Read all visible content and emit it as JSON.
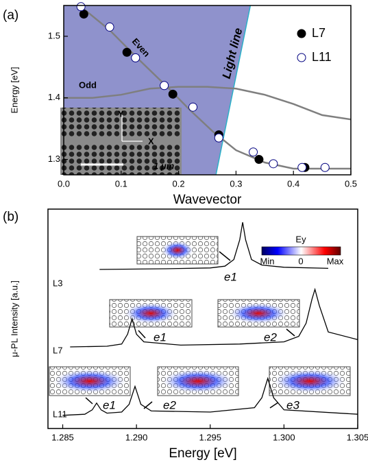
{
  "chart_data": [
    {
      "type": "scatter",
      "panel_label": "(a)",
      "x_label": "Wavevector",
      "y_label": "Energy [eV]",
      "xlim": [
        0,
        0.5
      ],
      "ylim": [
        1.275,
        1.55
      ],
      "xticks": [
        {
          "value": 0,
          "label": "0.0"
        },
        0.1,
        0.2,
        0.3,
        0.4,
        0.5
      ],
      "yticks": [
        1.3,
        1.4,
        1.5
      ],
      "shade_color": "#8f92cc",
      "series": [
        {
          "name": "Even",
          "style": "line",
          "color": "#7f7f7f",
          "x": [
            0.03,
            0.08,
            0.13,
            0.18,
            0.22,
            0.26,
            0.3,
            0.35,
            0.4,
            0.5
          ],
          "values": [
            1.548,
            1.51,
            1.463,
            1.418,
            1.38,
            1.345,
            1.315,
            1.295,
            1.285,
            1.285
          ]
        },
        {
          "name": "Odd",
          "style": "line",
          "color": "#7f7f7f",
          "x": [
            0,
            0.05,
            0.1,
            0.15,
            0.2,
            0.25,
            0.3,
            0.35,
            0.4,
            0.45,
            0.5
          ],
          "values": [
            1.4,
            1.4,
            1.405,
            1.415,
            1.418,
            1.418,
            1.415,
            1.405,
            1.39,
            1.372,
            1.365
          ]
        },
        {
          "name": "Light line",
          "style": "light",
          "color": "#2ab0c8",
          "x": [
            0.265,
            0.325
          ],
          "values": [
            1.275,
            1.55
          ]
        },
        {
          "name": "L7",
          "style": "filled",
          "color": "#000000",
          "x": [
            0.035,
            0.11,
            0.19,
            0.27,
            0.34,
            0.42
          ],
          "values": [
            1.536,
            1.474,
            1.406,
            1.34,
            1.3,
            1.287
          ]
        },
        {
          "name": "L11",
          "style": "open",
          "color": "#000080",
          "x": [
            0.03,
            0.08,
            0.125,
            0.175,
            0.225,
            0.27,
            0.33,
            0.365,
            0.415,
            0.455
          ],
          "values": [
            1.548,
            1.515,
            1.465,
            1.42,
            1.385,
            1.335,
            1.312,
            1.293,
            1.287,
            1.287
          ]
        }
      ],
      "inset_labels": [
        "Y",
        "X",
        "1 μm"
      ]
    },
    {
      "type": "line",
      "panel_label": "(b)",
      "x_label": "Energy [eV]",
      "y_label": "μ-PL Intensity [a.u.]",
      "xlim": [
        1.284,
        1.305
      ],
      "ylim": [
        0,
        10
      ],
      "xticks": [
        1.285,
        {
          "value": 1.29,
          "label": "1.290"
        },
        1.295,
        {
          "value": 1.3,
          "label": "1.300"
        },
        1.305
      ],
      "series": [
        {
          "name": "L3",
          "color": "#000000",
          "x": [
            1.2875,
            1.292,
            1.295,
            1.296,
            1.2966,
            1.297,
            1.2972,
            1.2974,
            1.2978,
            1.2985,
            1.3,
            1.303
          ],
          "values": [
            7.25,
            7.28,
            7.32,
            7.4,
            7.7,
            8.6,
            9.4,
            8.6,
            7.7,
            7.45,
            7.35,
            7.3
          ]
        },
        {
          "name": "L7",
          "color": "#000000",
          "x": [
            1.2855,
            1.288,
            1.289,
            1.2894,
            1.2897,
            1.29,
            1.2905,
            1.293,
            1.297,
            1.3,
            1.301,
            1.3015,
            1.3019,
            1.3021,
            1.3024,
            1.303,
            1.305
          ],
          "values": [
            3.72,
            3.75,
            3.85,
            4.3,
            5.0,
            4.3,
            3.95,
            3.8,
            3.85,
            3.95,
            4.2,
            4.8,
            5.9,
            6.34,
            5.6,
            4.4,
            4.05
          ]
        },
        {
          "name": "L11",
          "color": "#000000",
          "x": [
            1.285,
            1.2865,
            1.287,
            1.2873,
            1.2876,
            1.288,
            1.289,
            1.2895,
            1.2899,
            1.2903,
            1.291,
            1.295,
            1.298,
            1.2985,
            1.2989,
            1.2993,
            1.3,
            1.305
          ],
          "values": [
            0.6,
            0.65,
            0.85,
            1.16,
            0.85,
            0.7,
            0.75,
            1.1,
            1.92,
            1.1,
            0.8,
            0.75,
            0.95,
            1.4,
            2.28,
            1.4,
            0.85,
            0.65
          ]
        }
      ],
      "mode_labels": [
        "e1",
        "e1",
        "e2",
        "e1",
        "e2",
        "e3"
      ],
      "colorbar": {
        "title": "Ey",
        "labels": [
          "Min",
          "0",
          "Max"
        ]
      }
    }
  ]
}
